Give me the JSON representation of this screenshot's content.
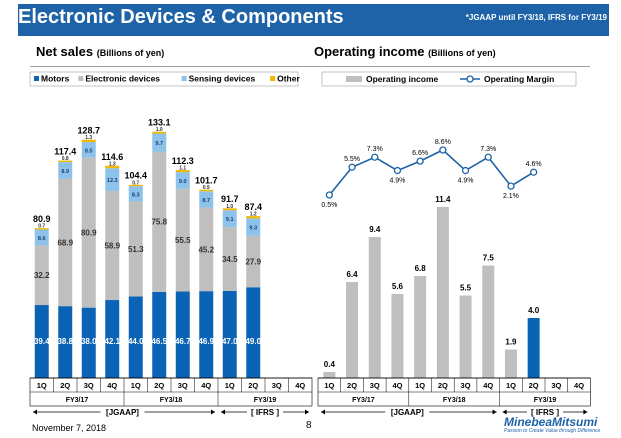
{
  "header": {
    "title": "Electronic Devices & Components",
    "note": "*JGAAP until FY3/18, IFRS for FY3/19"
  },
  "colors": {
    "header_bg": "#1e63a8",
    "motors": "#0a63b4",
    "electronic": "#bfbfbf",
    "sensing": "#8dc2ea",
    "other": "#f2b800",
    "op_income": "#bfbfbf",
    "op_income_highlight": "#0a63b4",
    "margin_line": "#1e63a8"
  },
  "chart_data": [
    {
      "type": "bar",
      "stacked": true,
      "title": "Net sales",
      "unit": "(Billions of yen)",
      "categories": [
        "1Q",
        "2Q",
        "3Q",
        "4Q",
        "1Q",
        "2Q",
        "3Q",
        "4Q",
        "1Q",
        "2Q",
        "3Q",
        "4Q"
      ],
      "fiscal_years": [
        "FY3/17",
        "FY3/18",
        "FY3/19"
      ],
      "period_labels": [
        "[JGAAP]",
        "[ IFRS ]"
      ],
      "legend_position": "top-left",
      "series": [
        {
          "name": "Motors",
          "values": [
            39.4,
            38.8,
            38.0,
            42.1,
            44.0,
            46.5,
            46.7,
            46.9,
            47.0,
            49.0,
            null,
            null
          ]
        },
        {
          "name": "Electronic devices",
          "values": [
            32.2,
            68.9,
            80.9,
            58.9,
            51.3,
            75.8,
            55.5,
            45.2,
            34.5,
            27.9,
            null,
            null
          ]
        },
        {
          "name": "Sensing devices",
          "values": [
            8.6,
            8.9,
            8.5,
            12.3,
            8.3,
            9.7,
            9.0,
            8.7,
            9.1,
            9.3,
            null,
            null
          ]
        },
        {
          "name": "Other",
          "values": [
            0.7,
            0.8,
            1.3,
            1.3,
            0.7,
            1.0,
            1.1,
            0.9,
            1.0,
            1.2,
            null,
            null
          ]
        }
      ],
      "totals": [
        80.9,
        117.4,
        128.7,
        114.6,
        104.4,
        133.1,
        112.3,
        101.7,
        91.7,
        87.4,
        null,
        null
      ],
      "ylim": [
        0,
        140
      ]
    },
    {
      "type": "bar+line",
      "title": "Operating income",
      "unit": "(Billions of yen)",
      "categories": [
        "1Q",
        "2Q",
        "3Q",
        "4Q",
        "1Q",
        "2Q",
        "3Q",
        "4Q",
        "1Q",
        "2Q",
        "3Q",
        "4Q"
      ],
      "fiscal_years": [
        "FY3/17",
        "FY3/18",
        "FY3/19"
      ],
      "period_labels": [
        "[JGAAP]",
        "[ IFRS ]"
      ],
      "legend_position": "top",
      "series": [
        {
          "name": "Operating income",
          "values": [
            0.4,
            6.4,
            9.4,
            5.6,
            6.8,
            11.4,
            5.5,
            7.5,
            1.9,
            4.0,
            null,
            null
          ],
          "labels": [
            "0.4",
            "6.4",
            "9.4",
            "5.6",
            "6.8",
            "11.4",
            "5.5",
            "7.5",
            "1.9",
            "4.0",
            "",
            ""
          ]
        },
        {
          "name": "Operating Margin",
          "values": [
            0.5,
            5.5,
            7.3,
            4.9,
            6.6,
            8.6,
            4.9,
            7.3,
            2.1,
            4.6,
            null,
            null
          ],
          "labels": [
            "0.5%",
            "5.5%",
            "7.3%",
            "4.9%",
            "6.6%",
            "8.6%",
            "4.9%",
            "7.3%",
            "2.1%",
            "4.6%",
            "",
            ""
          ]
        }
      ],
      "ylim": [
        0,
        12
      ]
    }
  ],
  "footer": {
    "date": "November 7, 2018",
    "page": "8",
    "brand": "MinebeaMitsumi",
    "tagline": "Passion to Create Value through Difference"
  }
}
